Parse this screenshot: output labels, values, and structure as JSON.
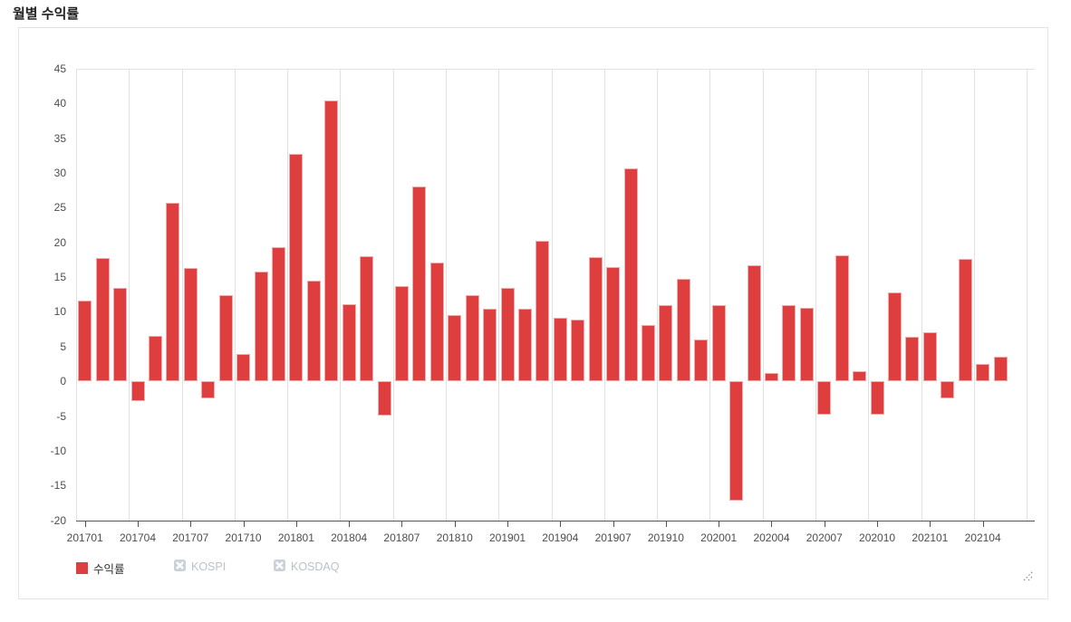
{
  "title": "월별 수익률",
  "legend": {
    "items": [
      {
        "label": "수익률",
        "active": true,
        "icon": "red-square"
      },
      {
        "label": "KOSPI",
        "active": false,
        "icon": "x-box"
      },
      {
        "label": "KOSDAQ",
        "active": false,
        "icon": "x-box"
      }
    ]
  },
  "colors": {
    "bar_fill": "#df3e3e",
    "bar_border": "#f2a9a9",
    "grid_line": "#e1e1e1",
    "axis_line": "#555555",
    "tick_label": "#4d4d4d",
    "title_text": "#222222",
    "legend_active_text": "#333333",
    "legend_disabled_text": "#b9c2ca",
    "legend_disabled_icon": "#c9d2da",
    "container_border": "#e4e4e4"
  },
  "chart_data": {
    "type": "bar",
    "title": "월별 수익률",
    "categories": [
      "201701",
      "201702",
      "201703",
      "201704",
      "201705",
      "201706",
      "201707",
      "201708",
      "201709",
      "201710",
      "201711",
      "201712",
      "201801",
      "201802",
      "201803",
      "201804",
      "201805",
      "201806",
      "201807",
      "201808",
      "201809",
      "201810",
      "201811",
      "201812",
      "201901",
      "201902",
      "201903",
      "201904",
      "201905",
      "201906",
      "201907",
      "201908",
      "201909",
      "201910",
      "201911",
      "201912",
      "202001",
      "202002",
      "202003",
      "202004",
      "202005",
      "202006",
      "202007",
      "202008",
      "202009",
      "202010",
      "202011",
      "202012",
      "202101",
      "202102",
      "202103",
      "202104",
      "202105"
    ],
    "series": [
      {
        "name": "수익률",
        "values": [
          11.6,
          17.8,
          13.5,
          -2.9,
          6.6,
          25.7,
          16.3,
          -2.4,
          12.4,
          3.9,
          15.8,
          19.3,
          32.8,
          14.5,
          40.5,
          11.1,
          18.0,
          -5.0,
          13.7,
          28.1,
          17.1,
          9.6,
          12.4,
          10.4,
          13.5,
          10.4,
          20.2,
          9.1,
          8.9,
          17.9,
          16.4,
          30.6,
          8.1,
          11.0,
          14.8,
          6.0,
          11.0,
          -17.2,
          16.7,
          1.2,
          11.0,
          10.6,
          -4.8,
          18.2,
          1.5,
          -4.8,
          12.8,
          6.4,
          7.1,
          -2.4,
          17.6,
          2.5,
          3.6
        ]
      }
    ],
    "hidden_series": [
      "KOSPI",
      "KOSDAQ"
    ],
    "ylim": [
      -20,
      45
    ],
    "y_ticks": [
      45,
      40,
      35,
      30,
      25,
      20,
      15,
      10,
      5,
      0,
      -5,
      -10,
      -15,
      -20
    ],
    "x_tick_labels": [
      "201701",
      "201704",
      "201707",
      "201710",
      "201801",
      "201804",
      "201807",
      "201810",
      "201901",
      "201904",
      "201907",
      "201910",
      "202001",
      "202004",
      "202007",
      "202010",
      "202101",
      "202104"
    ],
    "x_tick_every": 3,
    "grid": "vertical-only",
    "legend_position": "bottom-left"
  }
}
